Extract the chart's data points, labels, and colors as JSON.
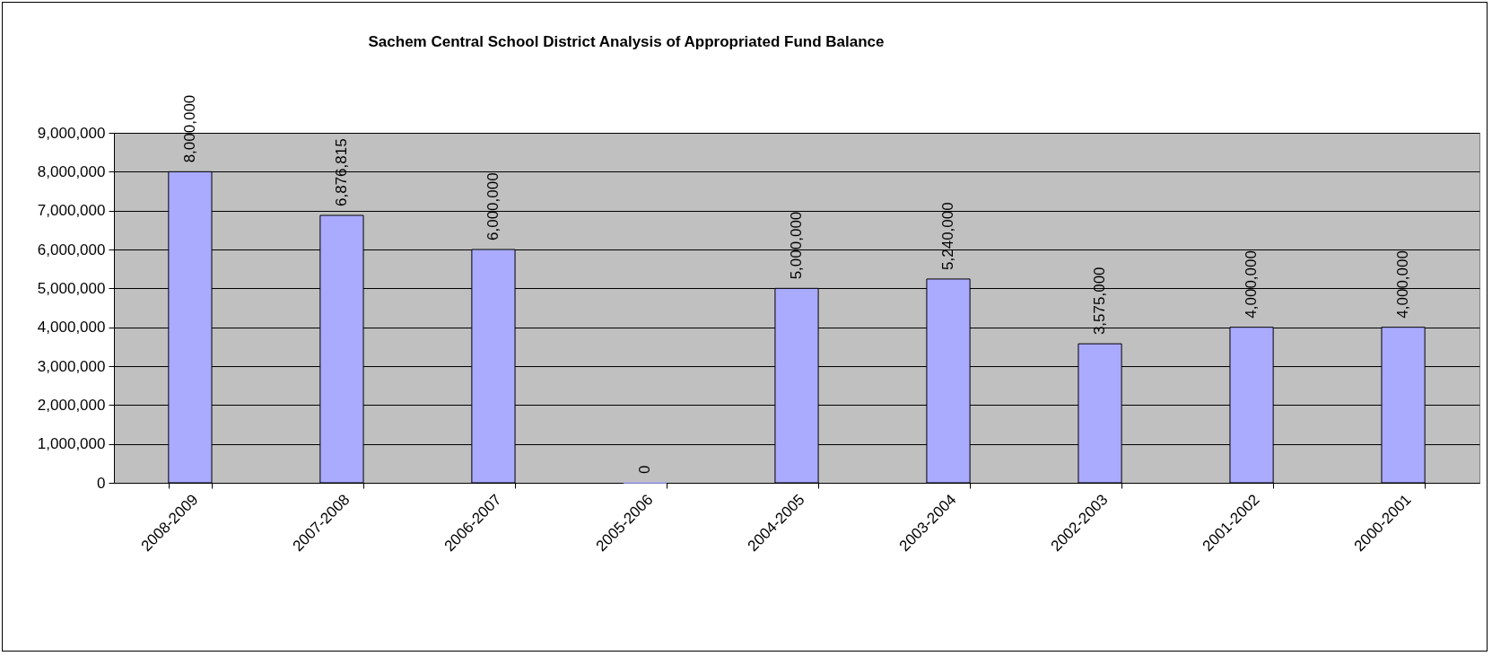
{
  "chart_data": {
    "type": "bar",
    "title": "Sachem Central School District Analysis of Appropriated Fund Balance",
    "categories": [
      "2008-2009",
      "2007-2008",
      "2006-2007",
      "2005-2006",
      "2004-2005",
      "2003-2004",
      "2002-2003",
      "2001-2002",
      "2000-2001"
    ],
    "values": [
      8000000,
      6876815,
      6000000,
      0,
      5000000,
      5240000,
      3575000,
      4000000,
      4000000
    ],
    "color": "#aaaaff",
    "ylim": [
      0,
      9000000
    ],
    "yticks": [
      {
        "value": 0,
        "label": "0"
      },
      {
        "value": 1000000,
        "label": "1,000,000"
      },
      {
        "value": 2000000,
        "label": "2,000,000"
      },
      {
        "value": 3000000,
        "label": "3,000,000"
      },
      {
        "value": 4000000,
        "label": "4,000,000"
      },
      {
        "value": 5000000,
        "label": "5,000,000"
      },
      {
        "value": 6000000,
        "label": "6,000,000"
      },
      {
        "value": 7000000,
        "label": "7,000,000"
      },
      {
        "value": 8000000,
        "label": "8,000,000"
      },
      {
        "value": 9000000,
        "label": "9,000,000"
      }
    ],
    "value_labels": [
      "8,000,000",
      "6,876,815",
      "6,000,000",
      "0",
      "5,000,000",
      "5,240,000",
      "3,575,000",
      "4,000,000",
      "4,000,000"
    ],
    "grid": "y"
  }
}
